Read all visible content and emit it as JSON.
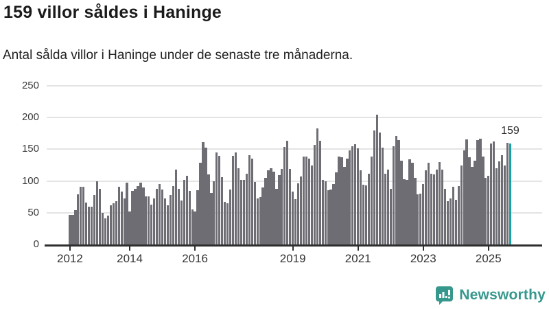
{
  "header": {
    "title": "159 villor såldes i Haninge",
    "subtitle": "Antal sålda villor i Haninge under de senaste tre månaderna."
  },
  "chart_data": {
    "type": "bar",
    "title": "159 villor såldes i Haninge",
    "subtitle": "Antal sålda villor i Haninge under de senaste tre månaderna.",
    "xlabel": "",
    "ylabel": "",
    "ylim": [
      0,
      250
    ],
    "y_ticks": [
      0,
      50,
      100,
      150,
      200,
      250
    ],
    "grid": "horizontal-only",
    "legend": "none",
    "frequency": "monthly",
    "bar_color": "#6e6d74",
    "x_ticks": [
      {
        "label": "2012",
        "index": 0
      },
      {
        "label": "2014",
        "index": 22
      },
      {
        "label": "2016",
        "index": 46
      },
      {
        "label": "2019",
        "index": 82
      },
      {
        "label": "2021",
        "index": 106
      },
      {
        "label": "2023",
        "index": 130
      },
      {
        "label": "2025",
        "index": 154
      }
    ],
    "values": [
      46,
      47,
      54,
      79,
      91,
      91,
      66,
      60,
      60,
      78,
      100,
      88,
      50,
      41,
      45,
      62,
      65,
      68,
      91,
      83,
      72,
      97,
      52,
      84,
      88,
      92,
      97,
      90,
      76,
      76,
      63,
      73,
      88,
      95,
      87,
      73,
      62,
      78,
      92,
      118,
      88,
      69,
      102,
      108,
      84,
      55,
      52,
      85,
      129,
      161,
      153,
      110,
      81,
      100,
      145,
      140,
      106,
      67,
      65,
      87,
      140,
      145,
      120,
      102,
      102,
      111,
      141,
      135,
      99,
      73,
      75,
      90,
      105,
      117,
      120,
      115,
      88,
      109,
      119,
      154,
      163,
      119,
      83,
      71,
      96,
      107,
      138,
      139,
      135,
      124,
      157,
      183,
      163,
      102,
      100,
      86,
      87,
      95,
      114,
      139,
      137,
      122,
      135,
      148,
      155,
      158,
      152,
      117,
      94,
      93,
      112,
      138,
      180,
      205,
      176,
      153,
      112,
      118,
      88,
      155,
      171,
      164,
      132,
      103,
      102,
      134,
      129,
      105,
      79,
      80,
      95,
      117,
      129,
      112,
      110,
      118,
      130,
      118,
      88,
      68,
      72,
      91,
      70,
      92,
      124,
      148,
      166,
      137,
      122,
      132,
      164,
      167,
      138,
      105,
      108,
      159,
      162,
      120,
      131,
      141,
      124,
      160,
      159
    ],
    "highlight": {
      "index": 162,
      "value": 159,
      "label": "159",
      "color": "#18a0a2"
    }
  },
  "footer": {
    "brand": "Newsworthy",
    "brand_color": "#36988d",
    "icon": "newsworthy-bubble-chart-icon"
  }
}
